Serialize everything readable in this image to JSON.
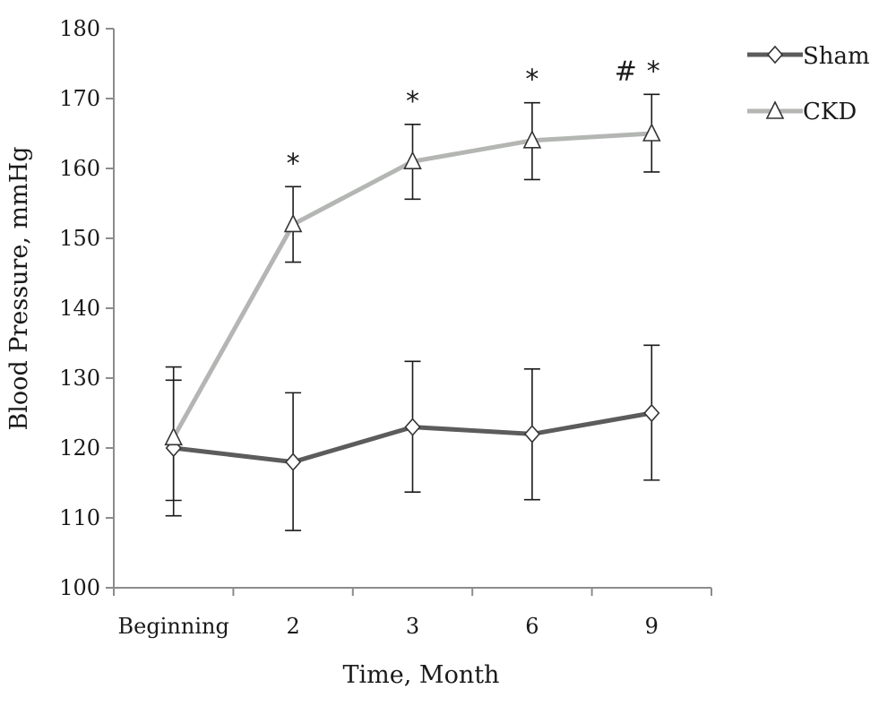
{
  "chart_data": {
    "type": "line",
    "title": "",
    "xlabel": "Time, Month",
    "ylabel": "Blood Pressure, mmHg",
    "categories": [
      "Beginning",
      "2",
      "3",
      "6",
      "9"
    ],
    "ylim": [
      100,
      180
    ],
    "yticks": [
      100,
      110,
      120,
      130,
      140,
      150,
      160,
      170,
      180
    ],
    "grid": false,
    "legend_position": "top-right",
    "series": [
      {
        "name": "Sham",
        "marker": "diamond",
        "color": "#5c5c5c",
        "values": [
          120,
          118,
          123,
          122,
          125
        ],
        "err_low": [
          110.3,
          108.2,
          113.7,
          112.6,
          115.4
        ],
        "err_high": [
          129.7,
          127.9,
          132.4,
          131.3,
          134.7
        ]
      },
      {
        "name": "CKD",
        "marker": "triangle",
        "color": "#b4b6b3",
        "values": [
          121.5,
          152,
          161,
          164,
          165
        ],
        "err_low": [
          112.5,
          146.6,
          155.6,
          158.4,
          159.5
        ],
        "err_high": [
          131.6,
          157.4,
          166.3,
          169.4,
          170.6
        ]
      }
    ],
    "annotations": [
      {
        "category": "2",
        "text": "*"
      },
      {
        "category": "3",
        "text": "*"
      },
      {
        "category": "6",
        "text": "*"
      },
      {
        "category": "9",
        "text": "#"
      },
      {
        "category": "9",
        "text": "*"
      }
    ]
  }
}
